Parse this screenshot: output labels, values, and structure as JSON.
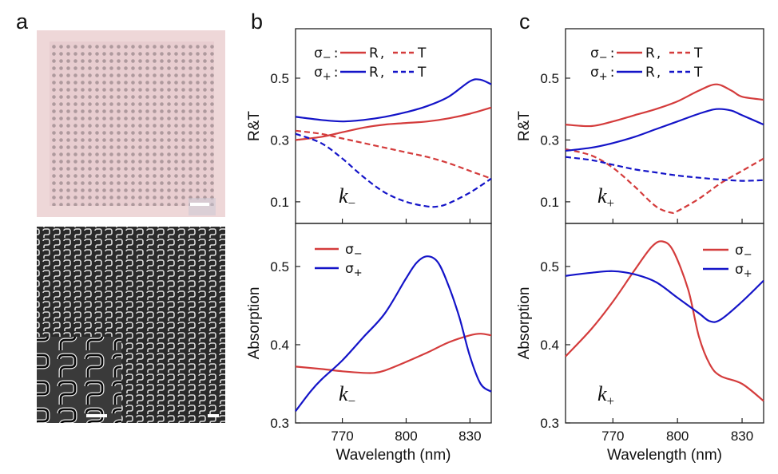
{
  "panel_labels": {
    "a": "a",
    "b": "b",
    "c": "c"
  },
  "colors": {
    "red": "#d43c3c",
    "blue": "#1414c8"
  },
  "images": {
    "optical": {
      "description": "optical micrograph of square metasurface array",
      "scale_bar": true
    },
    "sem": {
      "description": "SEM image of S-shaped chiral nanostructure array",
      "inset": "magnified view of S-shaped elements",
      "scale_bar": true
    }
  },
  "legend_symbols": {
    "sigma_minus": "σ",
    "sigma_plus": "σ",
    "minus": "−",
    "plus": "+",
    "colon": ":",
    "comma": ",",
    "R": "R",
    "T": "T"
  },
  "chart_data": [
    {
      "id": "b_top",
      "type": "line",
      "panel": "b",
      "ylabel": "R&T",
      "xlabel": "",
      "xlim": [
        748,
        840
      ],
      "ylim": [
        0.03,
        0.66
      ],
      "xticks": [],
      "yticks": [
        0.1,
        0.3,
        0.5
      ],
      "ytick_labels": [
        "0.1",
        "0.3",
        "0.5"
      ],
      "annotation": {
        "k": "k",
        "sub": "−"
      },
      "legend": "top-left",
      "series": [
        {
          "name": "σ− R",
          "color": "red",
          "dash": false,
          "x": [
            748,
            760,
            770,
            780,
            790,
            800,
            810,
            820,
            830,
            840
          ],
          "y": [
            0.3,
            0.31,
            0.325,
            0.34,
            0.35,
            0.355,
            0.36,
            0.37,
            0.385,
            0.405
          ]
        },
        {
          "name": "σ− T",
          "color": "red",
          "dash": true,
          "x": [
            748,
            760,
            770,
            780,
            790,
            800,
            810,
            820,
            830,
            840
          ],
          "y": [
            0.33,
            0.32,
            0.305,
            0.29,
            0.275,
            0.26,
            0.245,
            0.225,
            0.2,
            0.175
          ]
        },
        {
          "name": "σ+ R",
          "color": "blue",
          "dash": false,
          "x": [
            748,
            760,
            770,
            780,
            790,
            800,
            810,
            820,
            830,
            835,
            840
          ],
          "y": [
            0.375,
            0.365,
            0.36,
            0.365,
            0.375,
            0.39,
            0.41,
            0.44,
            0.49,
            0.495,
            0.48
          ]
        },
        {
          "name": "σ+ T",
          "color": "blue",
          "dash": true,
          "x": [
            748,
            760,
            770,
            780,
            790,
            800,
            810,
            815,
            820,
            830,
            840
          ],
          "y": [
            0.32,
            0.29,
            0.24,
            0.18,
            0.13,
            0.1,
            0.085,
            0.085,
            0.095,
            0.13,
            0.175
          ]
        }
      ]
    },
    {
      "id": "b_bottom",
      "type": "line",
      "panel": "b",
      "ylabel": "Absorption",
      "xlabel": "Wavelength (nm)",
      "xlim": [
        748,
        840
      ],
      "ylim": [
        0.3,
        0.555
      ],
      "xticks": [
        770,
        800,
        830
      ],
      "yticks": [
        0.3,
        0.4,
        0.5
      ],
      "xtick_labels": [
        "770",
        "800",
        "830"
      ],
      "ytick_labels": [
        "0.3",
        "0.4",
        "0.5"
      ],
      "annotation": {
        "k": "k",
        "sub": "−"
      },
      "legend": "top-left",
      "series": [
        {
          "name": "σ−",
          "color": "red",
          "dash": false,
          "x": [
            748,
            760,
            770,
            780,
            785,
            790,
            800,
            810,
            820,
            830,
            835,
            840
          ],
          "y": [
            0.372,
            0.369,
            0.366,
            0.364,
            0.364,
            0.367,
            0.378,
            0.39,
            0.403,
            0.412,
            0.414,
            0.412
          ]
        },
        {
          "name": "σ+",
          "color": "blue",
          "dash": false,
          "x": [
            748,
            755,
            760,
            770,
            780,
            790,
            800,
            805,
            810,
            815,
            820,
            825,
            830,
            835,
            840
          ],
          "y": [
            0.315,
            0.34,
            0.355,
            0.38,
            0.41,
            0.44,
            0.485,
            0.505,
            0.513,
            0.505,
            0.475,
            0.435,
            0.385,
            0.35,
            0.34
          ]
        }
      ]
    },
    {
      "id": "c_top",
      "type": "line",
      "panel": "c",
      "ylabel": "R&T",
      "xlabel": "",
      "xlim": [
        748,
        840
      ],
      "ylim": [
        0.03,
        0.66
      ],
      "xticks": [],
      "yticks": [
        0.1,
        0.3,
        0.5
      ],
      "ytick_labels": [
        "0.1",
        "0.3",
        "0.5"
      ],
      "annotation": {
        "k": "k",
        "sub": "+"
      },
      "legend": "top-left",
      "series": [
        {
          "name": "σ− R",
          "color": "red",
          "dash": false,
          "x": [
            748,
            760,
            770,
            780,
            790,
            800,
            810,
            818,
            825,
            830,
            840
          ],
          "y": [
            0.35,
            0.345,
            0.36,
            0.38,
            0.4,
            0.425,
            0.46,
            0.48,
            0.46,
            0.44,
            0.43
          ]
        },
        {
          "name": "σ− T",
          "color": "red",
          "dash": true,
          "x": [
            748,
            760,
            770,
            780,
            790,
            797,
            800,
            810,
            820,
            830,
            840
          ],
          "y": [
            0.27,
            0.25,
            0.21,
            0.15,
            0.085,
            0.065,
            0.07,
            0.11,
            0.16,
            0.2,
            0.24
          ]
        },
        {
          "name": "σ+ R",
          "color": "blue",
          "dash": false,
          "x": [
            748,
            760,
            770,
            780,
            790,
            800,
            810,
            818,
            825,
            830,
            840
          ],
          "y": [
            0.265,
            0.275,
            0.29,
            0.31,
            0.335,
            0.36,
            0.385,
            0.4,
            0.395,
            0.38,
            0.35
          ]
        },
        {
          "name": "σ+ T",
          "color": "blue",
          "dash": true,
          "x": [
            748,
            760,
            770,
            780,
            790,
            800,
            810,
            820,
            830,
            840
          ],
          "y": [
            0.245,
            0.235,
            0.22,
            0.205,
            0.195,
            0.185,
            0.178,
            0.172,
            0.168,
            0.17
          ]
        }
      ]
    },
    {
      "id": "c_bottom",
      "type": "line",
      "panel": "c",
      "ylabel": "Absorption",
      "xlabel": "Wavelength (nm)",
      "xlim": [
        748,
        840
      ],
      "ylim": [
        0.3,
        0.555
      ],
      "xticks": [
        770,
        800,
        830
      ],
      "yticks": [
        0.3,
        0.4,
        0.5
      ],
      "xtick_labels": [
        "770",
        "800",
        "830"
      ],
      "ytick_labels": [
        "0.3",
        "0.4",
        "0.5"
      ],
      "annotation": {
        "k": "k",
        "sub": "+"
      },
      "legend": "top-right",
      "series": [
        {
          "name": "σ−",
          "color": "red",
          "dash": false,
          "x": [
            748,
            760,
            770,
            780,
            788,
            793,
            798,
            805,
            810,
            815,
            820,
            830,
            840
          ],
          "y": [
            0.385,
            0.42,
            0.455,
            0.495,
            0.525,
            0.532,
            0.52,
            0.47,
            0.41,
            0.375,
            0.36,
            0.35,
            0.328
          ]
        },
        {
          "name": "σ+",
          "color": "blue",
          "dash": false,
          "x": [
            748,
            760,
            770,
            780,
            790,
            800,
            810,
            815,
            820,
            830,
            840
          ],
          "y": [
            0.488,
            0.492,
            0.494,
            0.49,
            0.48,
            0.46,
            0.44,
            0.43,
            0.432,
            0.455,
            0.482
          ]
        }
      ]
    }
  ]
}
